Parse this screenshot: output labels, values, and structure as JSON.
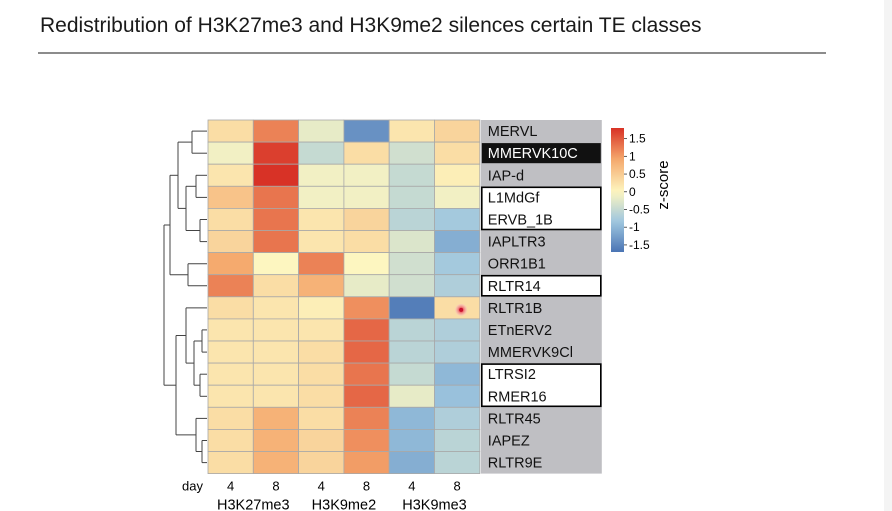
{
  "slide": {
    "title": "Redistribution of H3K27me3 and H3K9me2 silences certain TE classes"
  },
  "chart_data": {
    "type": "heatmap",
    "title": "",
    "rows": [
      "MERVL",
      "MMERVK10C",
      "IAP-d",
      "L1MdGf",
      "ERVB_1B",
      "IAPLTR3",
      "ORR1B1",
      "RLTR14",
      "RLTR1B",
      "ETnERV2",
      "MMERVK9Cl",
      "LTRSI2",
      "RMER16",
      "RLTR45",
      "IAPEZ",
      "RLTR9E"
    ],
    "highlighted_rows": [
      "MMERVK10C"
    ],
    "boxed_row_groups": [
      [
        "L1MdGf",
        "ERVB_1B"
      ],
      [
        "RLTR14"
      ],
      [
        "LTRSI2",
        "RMER16"
      ]
    ],
    "columns": [
      "4",
      "8",
      "4",
      "8",
      "4",
      "8"
    ],
    "x_prefix_label": "day",
    "column_groups": [
      {
        "label": "H3K27me3",
        "columns": [
          0,
          1
        ]
      },
      {
        "label": "H3K9me2",
        "columns": [
          2,
          3
        ]
      },
      {
        "label": "H3K9me3",
        "columns": [
          4,
          5
        ]
      }
    ],
    "values": [
      [
        0.3,
        1.2,
        -0.2,
        -1.4,
        0.2,
        0.4
      ],
      [
        -0.1,
        1.7,
        -0.5,
        0.3,
        -0.4,
        0.3
      ],
      [
        0.2,
        1.8,
        -0.1,
        -0.1,
        -0.5,
        0.1
      ],
      [
        0.6,
        1.3,
        -0.1,
        -0.1,
        -0.5,
        -0.1
      ],
      [
        0.3,
        1.3,
        0.2,
        0.4,
        -0.6,
        -0.8
      ],
      [
        0.4,
        1.3,
        0.2,
        0.3,
        -0.3,
        -1.1
      ],
      [
        0.9,
        0.0,
        1.2,
        0.0,
        -0.4,
        -0.8
      ],
      [
        1.2,
        0.3,
        0.8,
        -0.2,
        -0.4,
        -0.7
      ],
      [
        0.3,
        0.2,
        0.1,
        1.1,
        -1.6,
        0.3
      ],
      [
        0.2,
        0.2,
        0.2,
        1.4,
        -0.6,
        -0.7
      ],
      [
        0.2,
        0.2,
        0.3,
        1.4,
        -0.6,
        -0.7
      ],
      [
        0.2,
        0.2,
        0.3,
        1.3,
        -0.5,
        -1.0
      ],
      [
        0.2,
        0.2,
        0.3,
        1.4,
        -0.2,
        -0.9
      ],
      [
        0.3,
        0.8,
        0.3,
        1.2,
        -1.0,
        -0.7
      ],
      [
        0.3,
        0.8,
        0.4,
        1.1,
        -1.0,
        -0.6
      ],
      [
        0.3,
        0.8,
        0.4,
        1.0,
        -1.1,
        -0.6
      ]
    ],
    "colorbar": {
      "label": "z-score",
      "range": [
        -1.7,
        1.8
      ],
      "ticks": [
        1.5,
        1,
        0.5,
        0,
        -0.5,
        -1,
        -1.5
      ],
      "tick_labels": [
        "1.5",
        "1",
        "0.5",
        "0",
        "-0.5",
        "-1",
        "-1.5"
      ],
      "colors": {
        "low": "#4a74b4",
        "mid": "#fdf6c0",
        "high": "#d83226"
      }
    },
    "grid": true,
    "row_dendrogram": true,
    "annotation_marker": {
      "row": "RLTR1B",
      "column": 5
    }
  }
}
